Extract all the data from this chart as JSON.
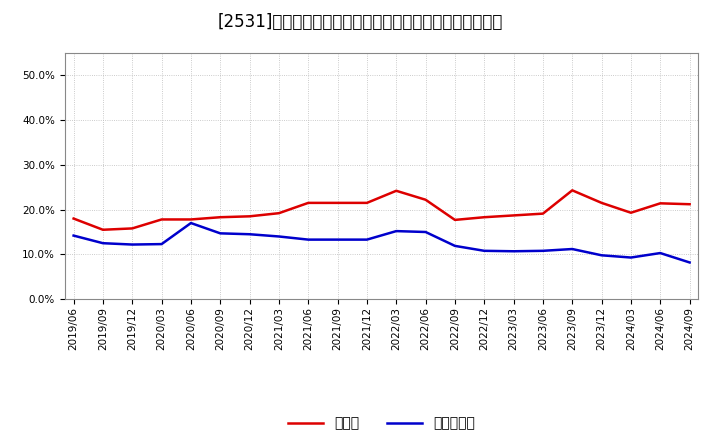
{
  "title": "[2531]　現預金、有利子負債の総資産に対する比率の推移",
  "x_labels": [
    "2019/06",
    "2019/09",
    "2019/12",
    "2020/03",
    "2020/06",
    "2020/09",
    "2020/12",
    "2021/03",
    "2021/06",
    "2021/09",
    "2021/12",
    "2022/03",
    "2022/06",
    "2022/09",
    "2022/12",
    "2023/03",
    "2023/06",
    "2023/09",
    "2023/12",
    "2024/03",
    "2024/06",
    "2024/09"
  ],
  "cash": [
    0.18,
    0.155,
    0.158,
    0.178,
    0.178,
    0.183,
    0.185,
    0.192,
    0.215,
    0.215,
    0.215,
    0.242,
    0.222,
    0.177,
    0.183,
    0.187,
    0.191,
    0.243,
    0.215,
    0.193,
    0.214,
    0.212
  ],
  "interest_bearing_debt": [
    0.142,
    0.125,
    0.122,
    0.123,
    0.17,
    0.147,
    0.145,
    0.14,
    0.133,
    0.133,
    0.133,
    0.152,
    0.15,
    0.119,
    0.108,
    0.107,
    0.108,
    0.112,
    0.098,
    0.093,
    0.103,
    0.082
  ],
  "cash_color": "#dd0000",
  "debt_color": "#0000cc",
  "background_color": "#ffffff",
  "grid_color": "#aaaaaa",
  "ylim": [
    0.0,
    0.55
  ],
  "yticks": [
    0.0,
    0.1,
    0.2,
    0.3,
    0.4,
    0.5
  ],
  "legend_cash": "現預金",
  "legend_debt": "有利子負債",
  "title_fontsize": 12,
  "legend_fontsize": 10,
  "tick_fontsize": 7.5
}
